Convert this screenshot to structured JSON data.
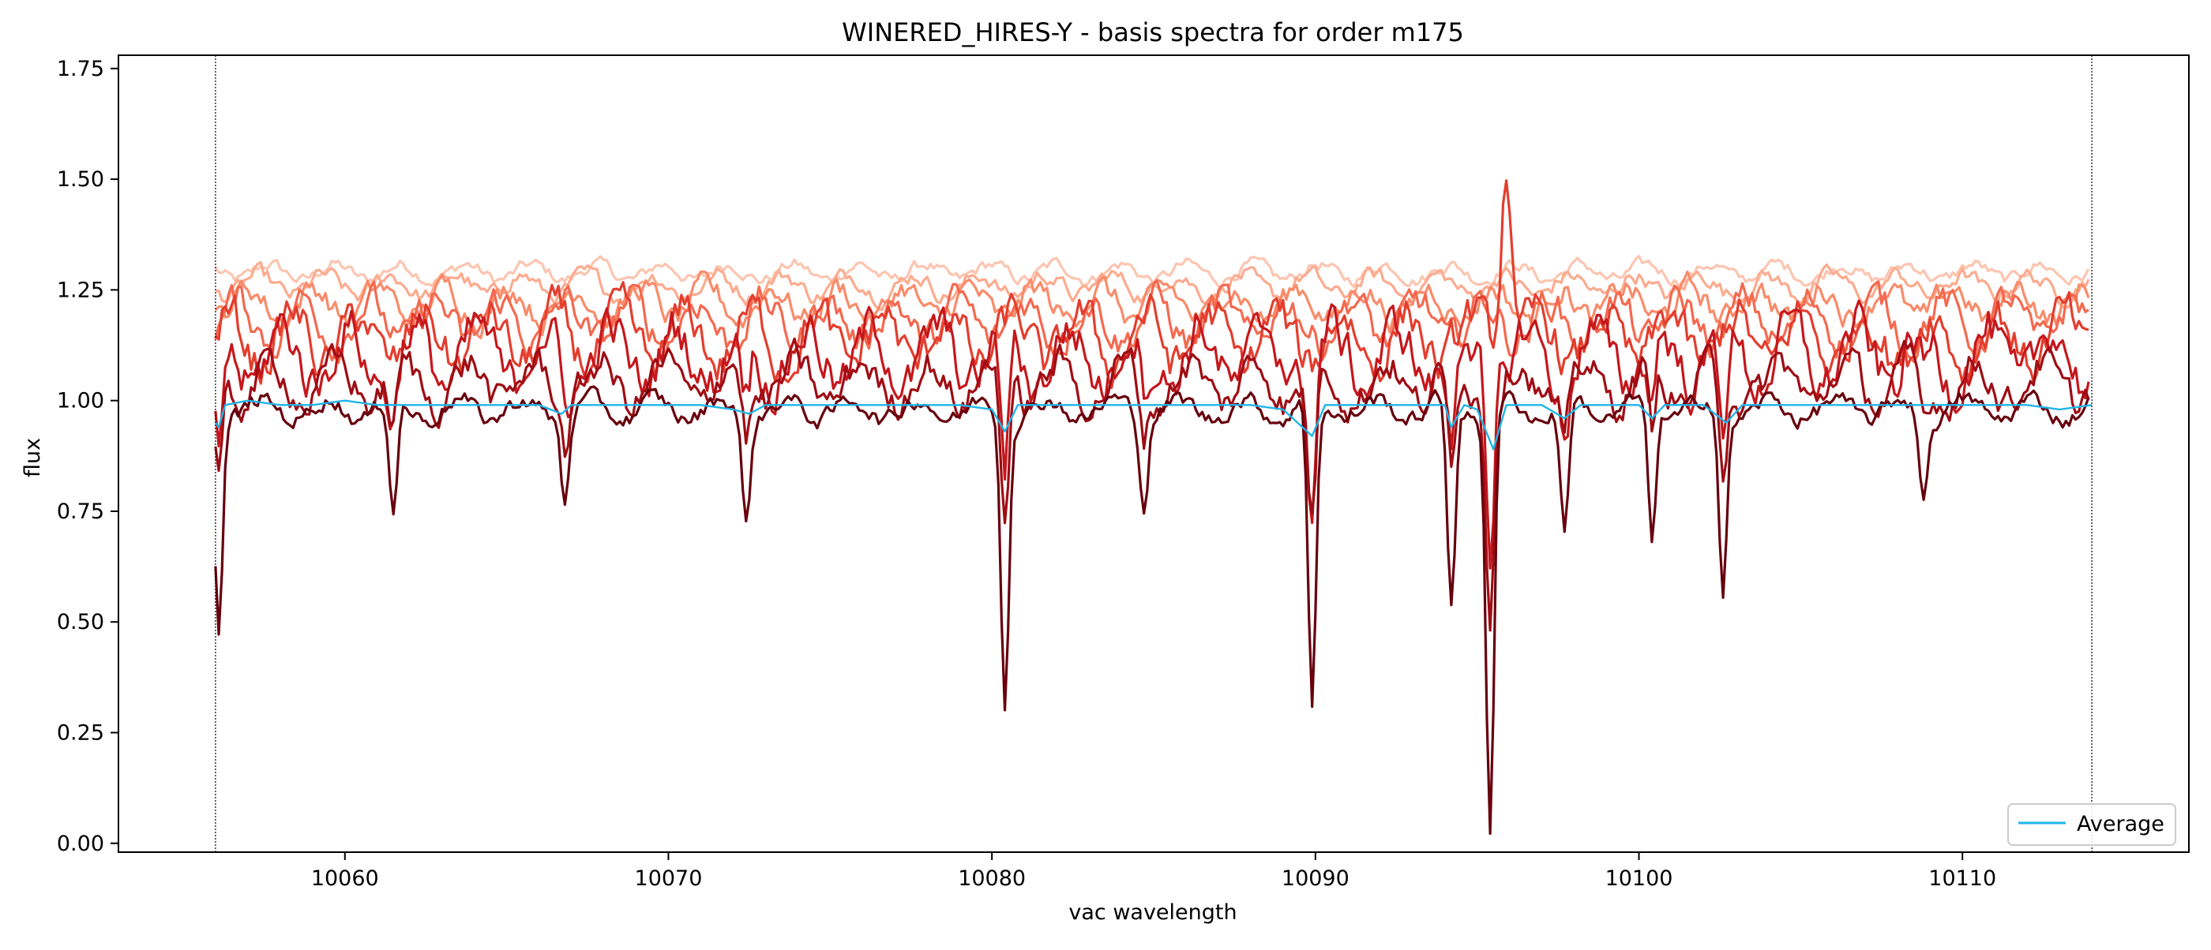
{
  "chart_data": {
    "type": "line",
    "title": "WINERED_HIRES-Y - basis spectra for order m175",
    "xlabel": "vac wavelength",
    "ylabel": "flux",
    "xlim": [
      10053,
      10117
    ],
    "ylim": [
      -0.02,
      1.78
    ],
    "xticks": [
      10060,
      10070,
      10080,
      10090,
      10100,
      10110
    ],
    "xtick_labels": [
      "10060",
      "10070",
      "10080",
      "10090",
      "10100",
      "10110"
    ],
    "yticks": [
      0.0,
      0.25,
      0.5,
      0.75,
      1.0,
      1.25,
      1.5,
      1.75
    ],
    "ytick_labels": [
      "0.00",
      "0.25",
      "0.50",
      "0.75",
      "1.00",
      "1.25",
      "1.50",
      "1.75"
    ],
    "grid": false,
    "legend_position": "lower right",
    "vertical_reference_lines": [
      10056,
      10114
    ],
    "basis_colors": [
      "#fcc5b0",
      "#fcab8f",
      "#f98b6a",
      "#f4694f",
      "#e33e2e",
      "#c5171c",
      "#9e0d14",
      "#67000d"
    ],
    "series": [
      {
        "name": "Average",
        "color": "#1fb5e8",
        "x": [
          10056.0,
          10056.1,
          10056.3,
          10057.0,
          10058.0,
          10059.0,
          10060.0,
          10061.0,
          10062.0,
          10063.0,
          10064.0,
          10065.0,
          10066.0,
          10066.7,
          10067.0,
          10068.0,
          10069.0,
          10070.0,
          10071.0,
          10072.0,
          10072.5,
          10073.0,
          10074.0,
          10075.0,
          10076.0,
          10077.0,
          10078.0,
          10079.0,
          10080.0,
          10080.4,
          10080.8,
          10082.0,
          10083.0,
          10084.0,
          10085.0,
          10086.0,
          10087.0,
          10088.0,
          10089.0,
          10089.9,
          10090.3,
          10091.0,
          10092.0,
          10093.0,
          10094.0,
          10094.2,
          10094.6,
          10095.0,
          10095.5,
          10095.9,
          10096.5,
          10097.0,
          10097.7,
          10098.2,
          10099.0,
          10100.0,
          10100.4,
          10100.8,
          10101.5,
          10102.0,
          10102.7,
          10103.2,
          10104.0,
          10105.0,
          10106.0,
          10107.0,
          10108.0,
          10109.0,
          10110.0,
          10111.0,
          10112.0,
          10113.0,
          10114.0
        ],
        "y": [
          0.95,
          0.94,
          0.99,
          1.0,
          0.99,
          0.99,
          1.0,
          0.99,
          0.99,
          0.99,
          0.99,
          0.99,
          0.99,
          0.97,
          0.99,
          0.99,
          0.99,
          0.99,
          0.99,
          0.98,
          0.97,
          0.99,
          0.99,
          0.99,
          0.99,
          0.99,
          0.99,
          0.99,
          0.98,
          0.93,
          0.99,
          0.99,
          0.99,
          0.99,
          0.99,
          0.99,
          0.99,
          0.99,
          0.98,
          0.92,
          0.99,
          0.99,
          0.99,
          0.99,
          0.99,
          0.94,
          0.99,
          0.98,
          0.89,
          0.99,
          0.99,
          0.99,
          0.96,
          0.99,
          0.99,
          0.99,
          0.96,
          0.99,
          0.99,
          0.99,
          0.95,
          0.99,
          0.99,
          0.99,
          0.99,
          0.99,
          0.99,
          0.99,
          0.99,
          0.99,
          0.99,
          0.98,
          0.99
        ]
      }
    ]
  },
  "legend": {
    "entries": [
      {
        "label": "Average",
        "color": "#1fb5e8"
      }
    ]
  }
}
